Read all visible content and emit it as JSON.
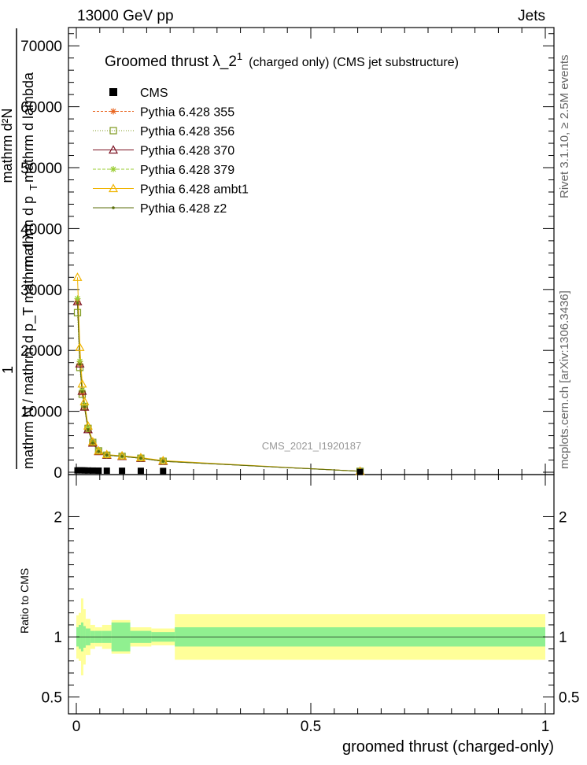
{
  "header": {
    "left": "13000 GeV pp",
    "right": "Jets"
  },
  "side_labels": {
    "rivet": "Rivet 3.1.10, ≥ 2.5M events",
    "mcplots": "mcplots.cern.ch [arXiv:1306.3436]"
  },
  "chart_data": [
    {
      "type": "line",
      "title_main": "Groomed thrust  λ_2",
      "title_sup": "1",
      "title_tail": "(charged only) (CMS jet substructure)",
      "watermark": "CMS_2021_I1920187",
      "ylabel_top": "1",
      "ylabel_den": "mathrm N / mathrm d p_T mathrm d λ",
      "ylabel_num": "mathrm d²N",
      "ylabel_mid_a": "mathrm d p",
      "ylabel_mid_b": "T",
      "ylabel_mid_c": "mathrm d lambda",
      "xlim": [
        0,
        1
      ],
      "ylim": [
        0,
        73000
      ],
      "yticks": [
        0,
        10000,
        20000,
        30000,
        40000,
        50000,
        60000,
        70000
      ],
      "ytick_labels": [
        "0",
        "10000",
        "20000",
        "30000",
        "40000",
        "50000",
        "60000",
        "70000"
      ],
      "legend_position": "top-left",
      "legend": [
        {
          "name": "CMS",
          "color": "#000000",
          "marker": "square-filled",
          "dash": ""
        },
        {
          "name": "Pythia 6.428 355",
          "color": "#e8641e",
          "marker": "star",
          "dash": "3,2"
        },
        {
          "name": "Pythia 6.428 356",
          "color": "#7f9a1e",
          "marker": "square-open",
          "dash": "1,2"
        },
        {
          "name": "Pythia 6.428 370",
          "color": "#7a1020",
          "marker": "triangle-open",
          "dash": ""
        },
        {
          "name": "Pythia 6.428 379",
          "color": "#9acd32",
          "marker": "star",
          "dash": "4,2"
        },
        {
          "name": "Pythia 6.428 ambt1",
          "color": "#f0b400",
          "marker": "triangle-open",
          "dash": ""
        },
        {
          "name": "Pythia 6.428 z2",
          "color": "#5a6e0a",
          "marker": "dot",
          "dash": ""
        }
      ],
      "data_x": [
        0.0025,
        0.0075,
        0.0125,
        0.0175,
        0.025,
        0.035,
        0.0475,
        0.065,
        0.0975,
        0.1375,
        0.185,
        0.605
      ],
      "cms_values": [
        300,
        320,
        310,
        290,
        280,
        270,
        260,
        250,
        240,
        230,
        210,
        40
      ],
      "series": [
        {
          "name": "Pythia 6.428 355",
          "values": [
            28000,
            17800,
            13000,
            10600,
            7000,
            4800,
            3400,
            2800,
            2600,
            2300,
            1800,
            150
          ]
        },
        {
          "name": "Pythia 6.428 356",
          "values": [
            26200,
            17200,
            12800,
            10800,
            7200,
            4900,
            3500,
            2800,
            2600,
            2300,
            1800,
            150
          ]
        },
        {
          "name": "Pythia 6.428 370",
          "values": [
            28000,
            17800,
            13300,
            10700,
            7000,
            4800,
            3400,
            2800,
            2600,
            2300,
            1800,
            150
          ]
        },
        {
          "name": "Pythia 6.428 379",
          "values": [
            28500,
            18200,
            13500,
            11000,
            7300,
            4900,
            3500,
            2800,
            2600,
            2300,
            1800,
            150
          ]
        },
        {
          "name": "Pythia 6.428 ambt1",
          "values": [
            32000,
            20500,
            14500,
            11600,
            7600,
            5000,
            3500,
            2900,
            2700,
            2400,
            1900,
            150
          ]
        },
        {
          "name": "Pythia 6.428 z2",
          "values": [
            27800,
            17700,
            13200,
            10700,
            7000,
            4800,
            3400,
            2800,
            2600,
            2300,
            1800,
            150
          ]
        }
      ]
    },
    {
      "type": "area",
      "ylabel": "Ratio to CMS",
      "xlabel": "groomed thrust (charged-only)",
      "xlim": [
        0,
        1
      ],
      "ylim": [
        0.36,
        2.35
      ],
      "xticks": [
        0,
        0.5,
        1
      ],
      "xtick_labels": [
        "0",
        "0.5",
        "1"
      ],
      "yticks": [
        0.5,
        1,
        2
      ],
      "ytick_labels": [
        "0.5",
        "1",
        "2"
      ],
      "bins": [
        {
          "lo": 0.0,
          "hi": 0.005,
          "stat": 0.08,
          "tot": 0.18
        },
        {
          "lo": 0.005,
          "hi": 0.01,
          "stat": 0.1,
          "tot": 0.2
        },
        {
          "lo": 0.01,
          "hi": 0.015,
          "stat": 0.12,
          "tot": 0.32
        },
        {
          "lo": 0.015,
          "hi": 0.02,
          "stat": 0.09,
          "tot": 0.23
        },
        {
          "lo": 0.02,
          "hi": 0.03,
          "stat": 0.07,
          "tot": 0.15
        },
        {
          "lo": 0.03,
          "hi": 0.04,
          "stat": 0.05,
          "tot": 0.1
        },
        {
          "lo": 0.04,
          "hi": 0.055,
          "stat": 0.05,
          "tot": 0.08
        },
        {
          "lo": 0.055,
          "hi": 0.075,
          "stat": 0.05,
          "tot": 0.1
        },
        {
          "lo": 0.075,
          "hi": 0.115,
          "stat": 0.12,
          "tot": 0.14
        },
        {
          "lo": 0.115,
          "hi": 0.16,
          "stat": 0.05,
          "tot": 0.08
        },
        {
          "lo": 0.16,
          "hi": 0.21,
          "stat": 0.04,
          "tot": 0.07
        },
        {
          "lo": 0.21,
          "hi": 1.0,
          "stat": 0.08,
          "tot": 0.19
        }
      ],
      "band_colors": {
        "stat": "#90f090",
        "tot": "#ffff99"
      }
    }
  ]
}
